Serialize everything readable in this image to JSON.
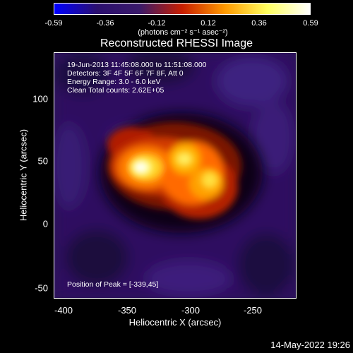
{
  "colorbar": {
    "ticks": [
      "-0.59",
      "-0.36",
      "-0.12",
      "0.12",
      "0.36",
      "0.59"
    ],
    "units": "(photons cm⁻² s⁻¹ asec⁻²)"
  },
  "title": "Reconstructed RHESSI Image",
  "info": {
    "time_range": "19-Jun-2013 11:45:08.000 to 11:51:08.000",
    "detectors": "Detectors: 3F 4F 5F 6F 7F 8F, Att 0",
    "energy": "Energy Range: 3.0 - 6.0 keV",
    "algorithm": "Clean    Total counts: 2.62E+05"
  },
  "peak": "Position of Peak = [-339,45]",
  "axes": {
    "x_label": "Heliocentric X (arcsec)",
    "y_label": "Heliocentric Y (arcsec)",
    "x_ticks": [
      "-400",
      "-350",
      "-300",
      "-250"
    ],
    "y_ticks": [
      "100",
      "50",
      "0",
      "-50"
    ]
  },
  "timestamp": "14-May-2022 19:26",
  "colors": {
    "cmap": [
      "#0000ff",
      "#2b0f6e",
      "#3a1a6a",
      "#c81e00",
      "#ff9a00",
      "#ffff60",
      "#ffffff"
    ]
  }
}
